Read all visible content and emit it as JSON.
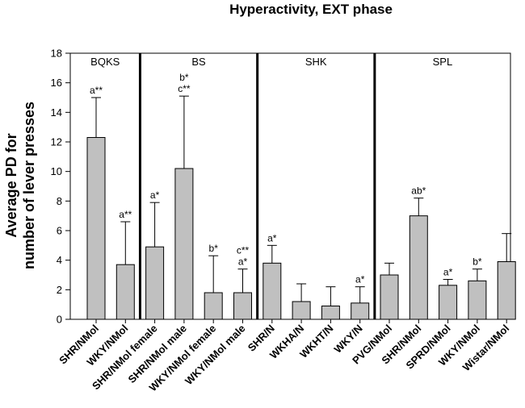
{
  "chart_data": {
    "type": "bar",
    "title": "Hyperactivity, EXT phase",
    "ylabel": [
      "Average PD for",
      "number of lever presses"
    ],
    "ylim": [
      0,
      18
    ],
    "yticks": [
      0,
      2,
      4,
      6,
      8,
      10,
      12,
      14,
      16,
      18
    ],
    "grid": false,
    "legend": "none",
    "bar_color": "#c0c0c0",
    "groups": [
      {
        "label": "BQKS",
        "start": 0,
        "end": 1
      },
      {
        "label": "BS",
        "start": 2,
        "end": 5
      },
      {
        "label": "SHK",
        "start": 6,
        "end": 9
      },
      {
        "label": "SPL",
        "start": 10,
        "end": 14
      }
    ],
    "categories": [
      "SHR/NMol",
      "WKY/NMol",
      "SHR/NMol female",
      "SHR/NMol male",
      "WKY/NMol female",
      "WKY/NMol male",
      "SHR/N",
      "WKHA/N",
      "WKHT/N",
      "WKY/N",
      "PVG/NMol",
      "SHR/NMol",
      "SPRD/NMol",
      "WKY/NMol",
      "Wistar/NMol"
    ],
    "values": [
      12.3,
      3.7,
      4.9,
      10.2,
      1.8,
      1.8,
      3.8,
      1.2,
      0.9,
      1.1,
      3.0,
      7.0,
      2.3,
      2.6,
      3.9
    ],
    "error_upper": [
      15.0,
      6.6,
      7.9,
      15.1,
      4.3,
      3.4,
      5.0,
      2.4,
      2.2,
      2.2,
      3.8,
      8.2,
      2.7,
      3.4,
      5.8
    ],
    "annotations": [
      [
        "a**"
      ],
      [
        "a**"
      ],
      [
        "a*"
      ],
      [
        "b*",
        "c**"
      ],
      [
        "b*"
      ],
      [
        "c**",
        "a*"
      ],
      [
        "a*"
      ],
      [],
      [],
      [
        "a*"
      ],
      [],
      [
        "ab*"
      ],
      [
        "a*"
      ],
      [
        "b*"
      ],
      []
    ]
  }
}
